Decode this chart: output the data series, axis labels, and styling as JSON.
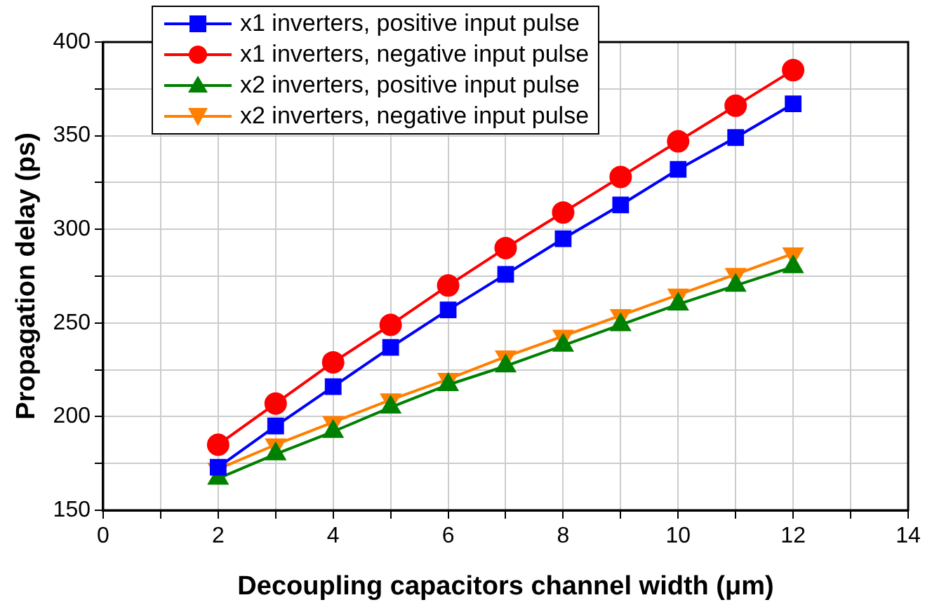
{
  "chart_data": {
    "type": "line",
    "xlabel": "Decoupling capacitors channel width (μm)",
    "ylabel": "Propagation delay (ps)",
    "x": [
      2,
      3,
      4,
      5,
      6,
      7,
      8,
      9,
      10,
      11,
      12
    ],
    "xlim": [
      0,
      14
    ],
    "xticks": [
      0,
      {
        "value": 1,
        "label": null
      },
      2,
      {
        "value": 3,
        "label": null
      },
      4,
      {
        "value": 5,
        "label": null
      },
      6,
      {
        "value": 7,
        "label": null
      },
      8,
      {
        "value": 9,
        "label": null
      },
      10,
      {
        "value": 11,
        "label": null
      },
      12,
      {
        "value": 13,
        "label": null
      },
      14
    ],
    "ylim": [
      150,
      400
    ],
    "yticks": [
      150,
      {
        "value": 175,
        "label": null
      },
      200,
      {
        "value": 225,
        "label": null
      },
      250,
      {
        "value": 275,
        "label": null
      },
      300,
      {
        "value": 325,
        "label": null
      },
      350,
      {
        "value": 375,
        "label": null
      },
      400
    ],
    "grid": true,
    "legend": "top left",
    "series": [
      {
        "name": "x1 inverters, positive input pulse",
        "color": "#0000ff",
        "marker": "square",
        "values": [
          173,
          195,
          216,
          237,
          257,
          276,
          295,
          313,
          332,
          349,
          367
        ]
      },
      {
        "name": "x1 inverters, negative input pulse",
        "color": "#ff0000",
        "marker": "circle",
        "values": [
          185,
          207,
          229,
          249,
          270,
          290,
          309,
          328,
          347,
          366,
          385
        ]
      },
      {
        "name": "x2 inverters, positive input pulse",
        "color": "#008000",
        "marker": "triangle",
        "values": [
          167,
          180,
          192,
          205,
          217,
          227,
          238,
          249,
          260,
          270,
          280
        ]
      },
      {
        "name": "x2 inverters, negative input pulse",
        "color": "#ff8000",
        "marker": "triangle-down",
        "values": [
          172,
          185,
          197,
          209,
          220,
          232,
          243,
          254,
          265,
          276,
          287
        ]
      }
    ]
  }
}
